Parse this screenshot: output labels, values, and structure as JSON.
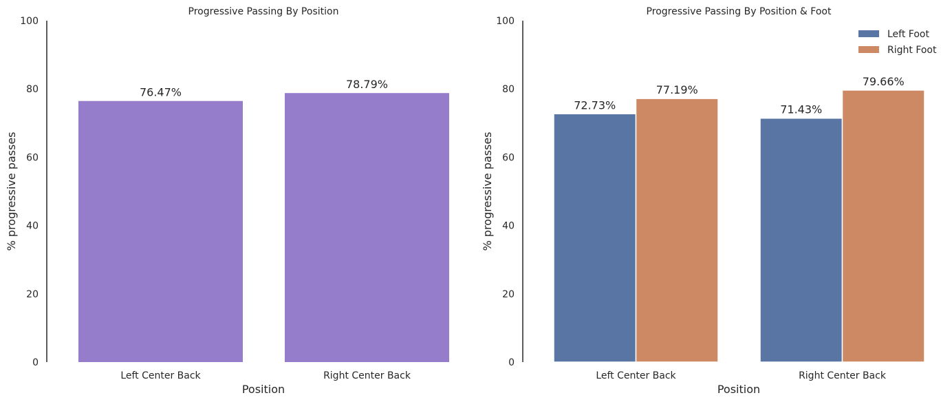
{
  "chart_data": [
    {
      "type": "bar",
      "title": "Progressive Passing By Position",
      "xlabel": "Position",
      "ylabel": "% progressive passes",
      "categories": [
        "Left Center Back",
        "Right Center Back"
      ],
      "values": [
        76.47,
        78.79
      ],
      "data_labels": [
        "76.47%",
        "78.79%"
      ],
      "ylim": [
        0,
        100
      ],
      "yticks": [
        "0",
        "20",
        "40",
        "60",
        "80",
        "100"
      ],
      "color": "#967dcc",
      "grid": false
    },
    {
      "type": "bar",
      "title": "Progressive Passing By Position & Foot",
      "xlabel": "Position",
      "ylabel": "% progressive passes",
      "categories": [
        "Left Center Back",
        "Right Center Back"
      ],
      "series": [
        {
          "name": "Left Foot",
          "values": [
            72.73,
            71.43
          ],
          "data_labels": [
            "72.73%",
            "71.43%"
          ],
          "color": "#5875a4"
        },
        {
          "name": "Right Foot",
          "values": [
            77.19,
            79.66
          ],
          "data_labels": [
            "77.19%",
            "79.66%"
          ],
          "color": "#cc8963"
        }
      ],
      "ylim": [
        0,
        100
      ],
      "yticks": [
        "0",
        "20",
        "40",
        "60",
        "80",
        "100"
      ],
      "legend": "top-right",
      "grid": false
    }
  ]
}
